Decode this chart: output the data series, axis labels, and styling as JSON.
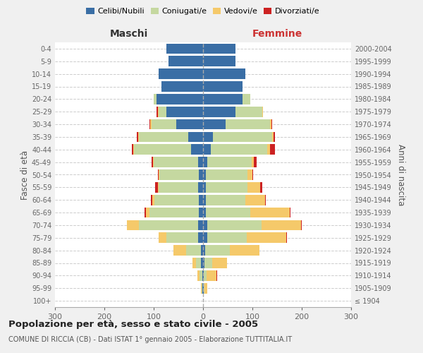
{
  "age_groups": [
    "100+",
    "95-99",
    "90-94",
    "85-89",
    "80-84",
    "75-79",
    "70-74",
    "65-69",
    "60-64",
    "55-59",
    "50-54",
    "45-49",
    "40-44",
    "35-39",
    "30-34",
    "25-29",
    "20-24",
    "15-19",
    "10-14",
    "5-9",
    "0-4"
  ],
  "birth_years": [
    "≤ 1904",
    "1905-1909",
    "1910-1914",
    "1915-1919",
    "1920-1924",
    "1925-1929",
    "1930-1934",
    "1935-1939",
    "1940-1944",
    "1945-1949",
    "1950-1954",
    "1955-1959",
    "1960-1964",
    "1965-1969",
    "1970-1974",
    "1975-1979",
    "1980-1984",
    "1985-1989",
    "1990-1994",
    "1995-1999",
    "2000-2004"
  ],
  "maschi": {
    "celibi": [
      0,
      1,
      2,
      4,
      5,
      10,
      10,
      8,
      8,
      10,
      8,
      10,
      25,
      30,
      55,
      75,
      95,
      85,
      90,
      70,
      75
    ],
    "coniugati": [
      0,
      2,
      5,
      10,
      30,
      65,
      120,
      100,
      90,
      80,
      80,
      90,
      115,
      100,
      50,
      15,
      5,
      0,
      0,
      0,
      0
    ],
    "vedovi": [
      0,
      2,
      5,
      8,
      25,
      15,
      25,
      8,
      5,
      2,
      2,
      2,
      2,
      2,
      2,
      2,
      0,
      0,
      0,
      0,
      0
    ],
    "divorziati": [
      0,
      0,
      0,
      0,
      0,
      0,
      0,
      2,
      2,
      5,
      2,
      2,
      2,
      2,
      2,
      2,
      0,
      0,
      0,
      0,
      0
    ]
  },
  "femmine": {
    "nubili": [
      0,
      1,
      2,
      3,
      4,
      8,
      8,
      5,
      5,
      5,
      5,
      8,
      15,
      20,
      45,
      65,
      80,
      80,
      85,
      65,
      65
    ],
    "coniugate": [
      0,
      2,
      5,
      15,
      50,
      80,
      110,
      90,
      80,
      85,
      85,
      90,
      115,
      120,
      90,
      55,
      15,
      0,
      0,
      0,
      0
    ],
    "vedove": [
      0,
      5,
      20,
      30,
      60,
      80,
      80,
      80,
      40,
      25,
      10,
      5,
      5,
      3,
      3,
      2,
      0,
      0,
      0,
      0,
      0
    ],
    "divorziate": [
      0,
      0,
      2,
      0,
      0,
      2,
      2,
      2,
      2,
      5,
      2,
      5,
      10,
      2,
      2,
      0,
      0,
      0,
      0,
      0,
      0
    ]
  },
  "colors": {
    "celibi_nubili": "#3a6ea5",
    "coniugati": "#c5d8a0",
    "vedovi": "#f5c96a",
    "divorziati": "#cc2222"
  },
  "xlim": 300,
  "title": "Popolazione per età, sesso e stato civile - 2005",
  "subtitle": "COMUNE DI RICCIA (CB) - Dati ISTAT 1° gennaio 2005 - Elaborazione TUTTITALIA.IT",
  "ylabel_left": "Fasce di età",
  "ylabel_right": "Anni di nascita",
  "xlabel_maschi": "Maschi",
  "xlabel_femmine": "Femmine",
  "bg_color": "#f0f0f0",
  "plot_bg_color": "#ffffff"
}
